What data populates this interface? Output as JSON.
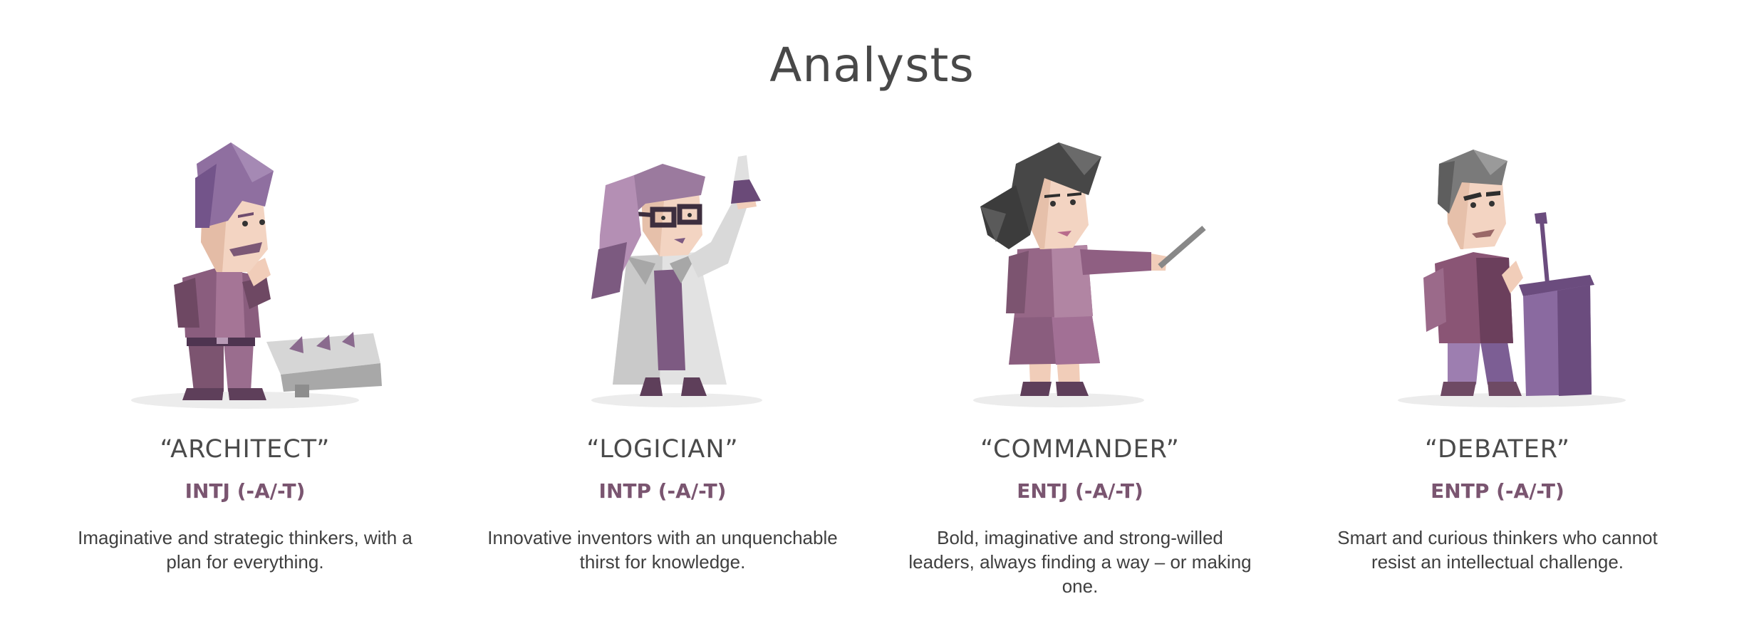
{
  "section": {
    "title": "Analysts"
  },
  "cards": [
    {
      "nickname": "“ARCHITECT”",
      "code": "INTJ (-A/-T)",
      "description": "Imaginative and strategic thinkers, with a plan for everything."
    },
    {
      "nickname": "“LOGICIAN”",
      "code": "INTP (-A/-T)",
      "description": "Innovative inventors with an unquenchable thirst for knowledge."
    },
    {
      "nickname": "“COMMANDER”",
      "code": "ENTJ (-A/-T)",
      "description": "Bold, imaginative and strong-willed leaders, always finding a way – or making one."
    },
    {
      "nickname": "“DEBATER”",
      "code": "ENTP (-A/-T)",
      "description": "Smart and curious thinkers who cannot resist an intellectual challenge."
    }
  ],
  "colors": {
    "accent_code": "#7a5570",
    "purple_light": "#a07fa8",
    "purple_dark": "#5e4461",
    "skin": "#f2d4c2",
    "gray": "#8d8d8d"
  },
  "icons": [
    "architect-illustration",
    "logician-illustration",
    "commander-illustration",
    "debater-illustration"
  ]
}
